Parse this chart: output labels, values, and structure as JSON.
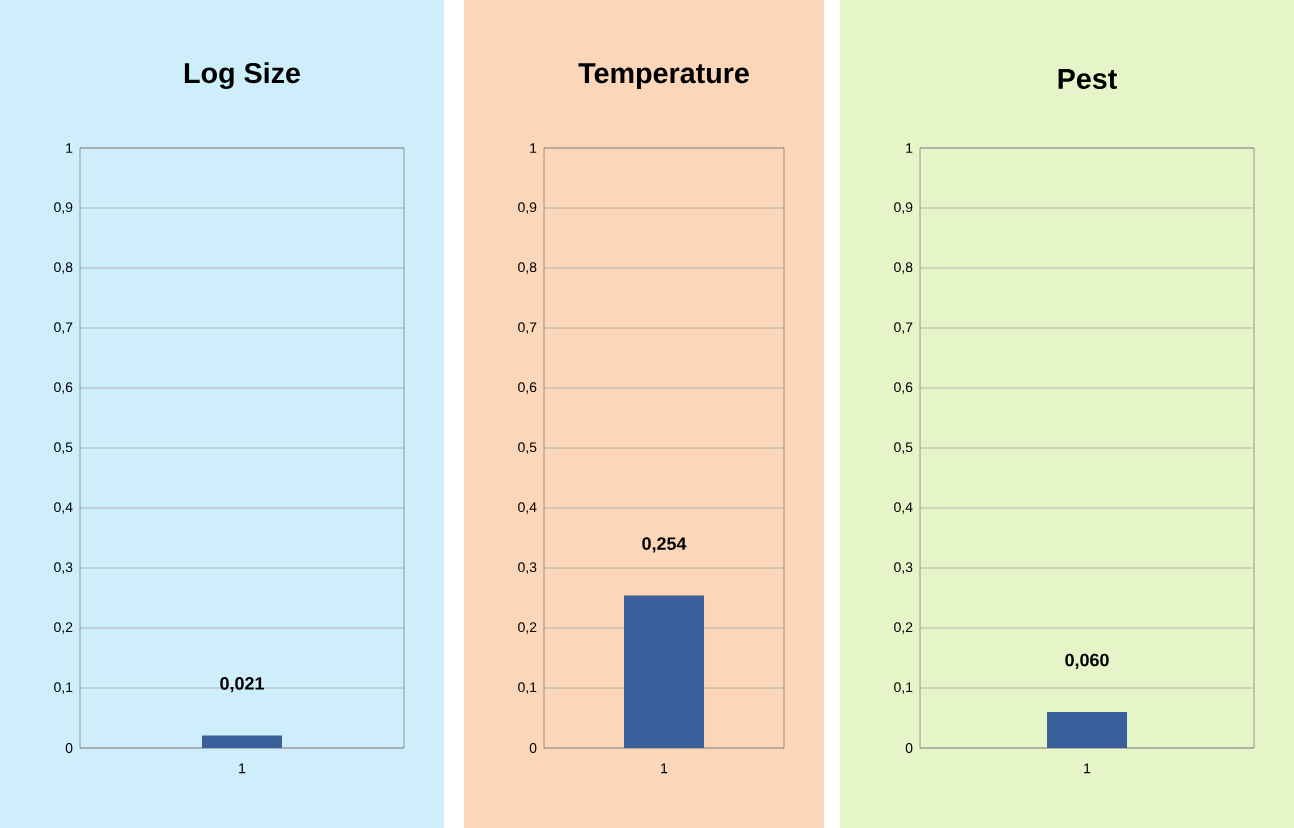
{
  "chart_data": [
    {
      "type": "bar",
      "title": "Log Size",
      "categories": [
        "1"
      ],
      "values": [
        0.021
      ],
      "value_labels": [
        "0,021"
      ],
      "color": "#3b5f9b",
      "ylim": [
        0,
        1
      ],
      "yticks": [
        0,
        {
          "value": 0.1,
          "label": "0,1"
        },
        {
          "value": 0.2,
          "label": "0,2"
        },
        {
          "value": 0.3,
          "label": "0,3"
        },
        {
          "value": 0.4,
          "label": "0,4"
        },
        {
          "value": 0.5,
          "label": "0,5"
        },
        {
          "value": 0.6,
          "label": "0,6"
        },
        {
          "value": 0.7,
          "label": "0,7"
        },
        {
          "value": 0.8,
          "label": "0,8"
        },
        {
          "value": 0.9,
          "label": "0,9"
        },
        1
      ],
      "grid": "y"
    },
    {
      "type": "bar",
      "title": "Temperature",
      "categories": [
        "1"
      ],
      "values": [
        0.254
      ],
      "value_labels": [
        "0,254"
      ],
      "color": "#3b5f9b",
      "ylim": [
        0,
        1
      ],
      "yticks": [
        0,
        {
          "value": 0.1,
          "label": "0,1"
        },
        {
          "value": 0.2,
          "label": "0,2"
        },
        {
          "value": 0.3,
          "label": "0,3"
        },
        {
          "value": 0.4,
          "label": "0,4"
        },
        {
          "value": 0.5,
          "label": "0,5"
        },
        {
          "value": 0.6,
          "label": "0,6"
        },
        {
          "value": 0.7,
          "label": "0,7"
        },
        {
          "value": 0.8,
          "label": "0,8"
        },
        {
          "value": 0.9,
          "label": "0,9"
        },
        1
      ],
      "grid": "y"
    },
    {
      "type": "bar",
      "title": "Pest",
      "categories": [
        "1"
      ],
      "values": [
        0.06
      ],
      "value_labels": [
        "0,060"
      ],
      "color": "#3b5f9b",
      "ylim": [
        0,
        1
      ],
      "yticks": [
        0,
        {
          "value": 0.1,
          "label": "0,1"
        },
        {
          "value": 0.2,
          "label": "0,2"
        },
        {
          "value": 0.3,
          "label": "0,3"
        },
        {
          "value": 0.4,
          "label": "0,4"
        },
        {
          "value": 0.5,
          "label": "0,5"
        },
        {
          "value": 0.6,
          "label": "0,6"
        },
        {
          "value": 0.7,
          "label": "0,7"
        },
        {
          "value": 0.8,
          "label": "0,8"
        },
        {
          "value": 0.9,
          "label": "0,9"
        },
        1
      ],
      "grid": "y"
    }
  ]
}
